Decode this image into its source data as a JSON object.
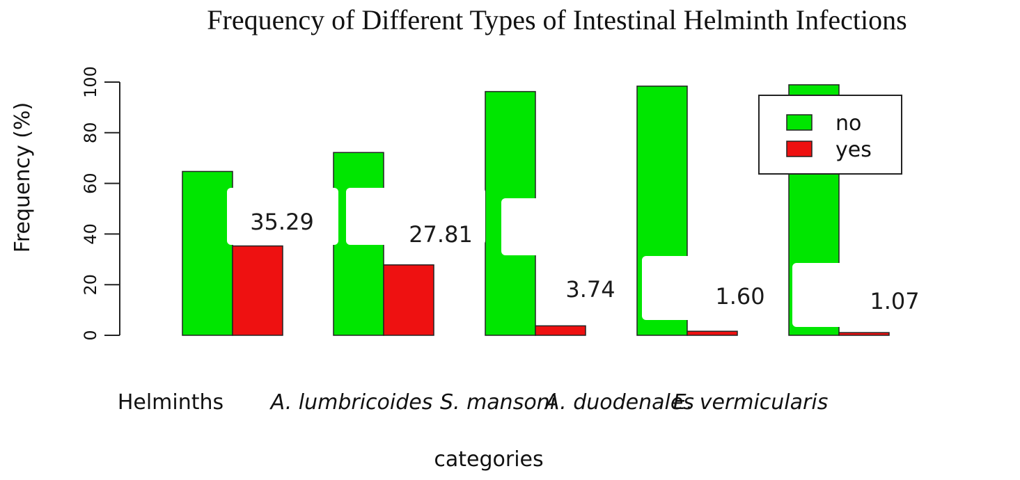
{
  "chart_data": {
    "type": "bar",
    "title": "Frequency of Different Types of Intestinal Helminth Infections",
    "xlabel": "categories",
    "ylabel": "Frequency (%)",
    "ylim": [
      0,
      100
    ],
    "yticks": [
      0,
      20,
      40,
      60,
      80,
      100
    ],
    "categories": [
      "Helminths",
      "A. lumbricoides",
      "S. mansoni",
      "A. duodenales",
      "E. vermicularis"
    ],
    "italic_categories": [
      false,
      true,
      true,
      true,
      true
    ],
    "series": [
      {
        "name": "no",
        "color": "#00e600",
        "values": [
          64.71,
          72.19,
          96.26,
          98.4,
          98.93
        ]
      },
      {
        "name": "yes",
        "color": "#ee1111",
        "values": [
          35.29,
          27.81,
          3.74,
          1.6,
          1.07
        ]
      }
    ],
    "data_labels": [
      "35.29",
      "27.81",
      "3.74",
      "1.60",
      "1.07"
    ],
    "legend_position": "top-right",
    "grid": false
  }
}
